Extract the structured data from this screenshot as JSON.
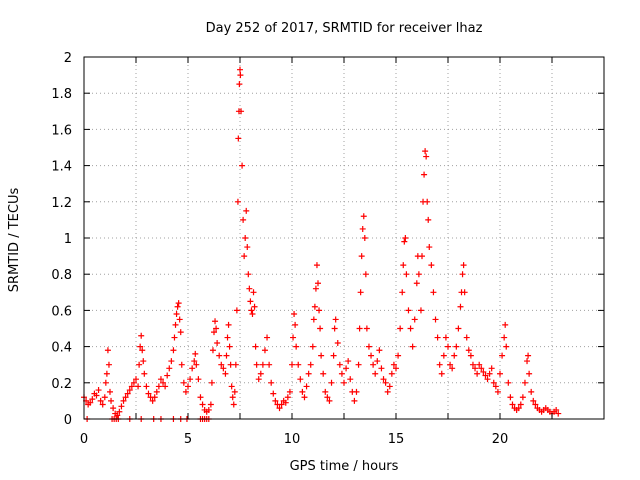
{
  "chart_data": {
    "type": "scatter",
    "title": "Day 252 of 2017, SRMTID for receiver lhaz",
    "xlabel": "GPS time / hours",
    "ylabel": "SRMTID / TECUs",
    "xlim": [
      0,
      25
    ],
    "ylim": [
      0,
      2
    ],
    "xticks": [
      0,
      5,
      10,
      15,
      20
    ],
    "yticks": [
      0,
      0.2,
      0.4,
      0.6,
      0.8,
      1,
      1.2,
      1.4,
      1.6,
      1.8,
      2
    ],
    "xtick_labels": [
      "0",
      "5",
      "10",
      "15",
      "20"
    ],
    "ytick_labels": [
      "0",
      "0.2",
      "0.4",
      "0.6",
      "0.8",
      "1",
      "1.2",
      "1.4",
      "1.6",
      "1.8",
      "2"
    ],
    "marker": "+",
    "color": "#ff0000",
    "grid": true,
    "series": [
      {
        "name": "SRMTID",
        "points": [
          [
            0.0,
            0.12
          ],
          [
            0.1,
            0.1
          ],
          [
            0.2,
            0.08
          ],
          [
            0.3,
            0.09
          ],
          [
            0.4,
            0.11
          ],
          [
            0.5,
            0.14
          ],
          [
            0.6,
            0.13
          ],
          [
            0.7,
            0.16
          ],
          [
            0.8,
            0.1
          ],
          [
            0.9,
            0.08
          ],
          [
            1.0,
            0.12
          ],
          [
            1.05,
            0.2
          ],
          [
            1.1,
            0.25
          ],
          [
            1.15,
            0.38
          ],
          [
            1.2,
            0.3
          ],
          [
            1.25,
            0.15
          ],
          [
            1.3,
            0.1
          ],
          [
            1.4,
            0.06
          ],
          [
            1.5,
            0.03
          ],
          [
            1.6,
            0.02
          ],
          [
            1.7,
            0.04
          ],
          [
            1.8,
            0.07
          ],
          [
            1.9,
            0.1
          ],
          [
            2.0,
            0.12
          ],
          [
            2.1,
            0.14
          ],
          [
            2.2,
            0.16
          ],
          [
            2.3,
            0.18
          ],
          [
            2.4,
            0.2
          ],
          [
            2.5,
            0.22
          ],
          [
            2.6,
            0.18
          ],
          [
            2.65,
            0.3
          ],
          [
            2.7,
            0.4
          ],
          [
            2.75,
            0.46
          ],
          [
            2.8,
            0.38
          ],
          [
            2.85,
            0.32
          ],
          [
            2.9,
            0.25
          ],
          [
            3.0,
            0.18
          ],
          [
            3.1,
            0.14
          ],
          [
            3.2,
            0.12
          ],
          [
            3.3,
            0.1
          ],
          [
            3.4,
            0.12
          ],
          [
            3.5,
            0.15
          ],
          [
            3.6,
            0.18
          ],
          [
            3.7,
            0.22
          ],
          [
            3.8,
            0.2
          ],
          [
            3.9,
            0.18
          ],
          [
            4.0,
            0.24
          ],
          [
            4.1,
            0.28
          ],
          [
            4.2,
            0.32
          ],
          [
            4.3,
            0.38
          ],
          [
            4.35,
            0.45
          ],
          [
            4.4,
            0.52
          ],
          [
            4.45,
            0.58
          ],
          [
            4.5,
            0.62
          ],
          [
            4.55,
            0.64
          ],
          [
            4.6,
            0.55
          ],
          [
            4.65,
            0.48
          ],
          [
            4.7,
            0.3
          ],
          [
            4.8,
            0.2
          ],
          [
            4.9,
            0.15
          ],
          [
            5.0,
            0.18
          ],
          [
            5.1,
            0.22
          ],
          [
            5.2,
            0.28
          ],
          [
            5.3,
            0.32
          ],
          [
            5.35,
            0.36
          ],
          [
            5.4,
            0.3
          ],
          [
            5.5,
            0.22
          ],
          [
            5.6,
            0.12
          ],
          [
            5.7,
            0.08
          ],
          [
            5.8,
            0.05
          ],
          [
            5.9,
            0.04
          ],
          [
            6.0,
            0.05
          ],
          [
            6.1,
            0.08
          ],
          [
            6.15,
            0.2
          ],
          [
            6.2,
            0.38
          ],
          [
            6.25,
            0.48
          ],
          [
            6.3,
            0.54
          ],
          [
            6.35,
            0.5
          ],
          [
            6.4,
            0.42
          ],
          [
            6.5,
            0.35
          ],
          [
            6.6,
            0.3
          ],
          [
            6.7,
            0.28
          ],
          [
            6.8,
            0.25
          ],
          [
            6.85,
            0.35
          ],
          [
            6.9,
            0.45
          ],
          [
            6.95,
            0.52
          ],
          [
            7.0,
            0.4
          ],
          [
            7.05,
            0.3
          ],
          [
            7.1,
            0.18
          ],
          [
            7.15,
            0.12
          ],
          [
            7.2,
            0.08
          ],
          [
            7.25,
            0.15
          ],
          [
            7.3,
            0.3
          ],
          [
            7.35,
            0.6
          ],
          [
            7.4,
            1.2
          ],
          [
            7.42,
            1.55
          ],
          [
            7.45,
            1.7
          ],
          [
            7.47,
            1.85
          ],
          [
            7.5,
            1.93
          ],
          [
            7.52,
            1.9
          ],
          [
            7.55,
            1.7
          ],
          [
            7.6,
            1.4
          ],
          [
            7.65,
            1.1
          ],
          [
            7.7,
            0.9
          ],
          [
            7.75,
            1.0
          ],
          [
            7.8,
            1.15
          ],
          [
            7.85,
            0.95
          ],
          [
            7.9,
            0.8
          ],
          [
            7.95,
            0.72
          ],
          [
            8.0,
            0.65
          ],
          [
            8.05,
            0.6
          ],
          [
            8.1,
            0.58
          ],
          [
            8.15,
            0.7
          ],
          [
            8.2,
            0.62
          ],
          [
            8.25,
            0.4
          ],
          [
            8.3,
            0.3
          ],
          [
            8.4,
            0.22
          ],
          [
            8.5,
            0.25
          ],
          [
            8.6,
            0.3
          ],
          [
            8.7,
            0.38
          ],
          [
            8.8,
            0.45
          ],
          [
            8.9,
            0.3
          ],
          [
            9.0,
            0.2
          ],
          [
            9.1,
            0.14
          ],
          [
            9.2,
            0.1
          ],
          [
            9.3,
            0.08
          ],
          [
            9.4,
            0.06
          ],
          [
            9.5,
            0.08
          ],
          [
            9.6,
            0.1
          ],
          [
            9.7,
            0.09
          ],
          [
            9.8,
            0.12
          ],
          [
            9.9,
            0.15
          ],
          [
            10.0,
            0.3
          ],
          [
            10.05,
            0.45
          ],
          [
            10.1,
            0.58
          ],
          [
            10.15,
            0.52
          ],
          [
            10.2,
            0.4
          ],
          [
            10.3,
            0.3
          ],
          [
            10.4,
            0.22
          ],
          [
            10.5,
            0.15
          ],
          [
            10.6,
            0.12
          ],
          [
            10.7,
            0.18
          ],
          [
            10.8,
            0.25
          ],
          [
            10.9,
            0.3
          ],
          [
            11.0,
            0.4
          ],
          [
            11.05,
            0.55
          ],
          [
            11.1,
            0.62
          ],
          [
            11.15,
            0.72
          ],
          [
            11.2,
            0.85
          ],
          [
            11.25,
            0.75
          ],
          [
            11.3,
            0.6
          ],
          [
            11.35,
            0.5
          ],
          [
            11.4,
            0.35
          ],
          [
            11.5,
            0.25
          ],
          [
            11.6,
            0.15
          ],
          [
            11.7,
            0.12
          ],
          [
            11.8,
            0.1
          ],
          [
            11.9,
            0.2
          ],
          [
            12.0,
            0.35
          ],
          [
            12.05,
            0.5
          ],
          [
            12.1,
            0.55
          ],
          [
            12.2,
            0.42
          ],
          [
            12.3,
            0.3
          ],
          [
            12.4,
            0.25
          ],
          [
            12.5,
            0.2
          ],
          [
            12.6,
            0.28
          ],
          [
            12.7,
            0.32
          ],
          [
            12.8,
            0.22
          ],
          [
            12.9,
            0.15
          ],
          [
            13.0,
            0.1
          ],
          [
            13.1,
            0.15
          ],
          [
            13.2,
            0.3
          ],
          [
            13.25,
            0.5
          ],
          [
            13.3,
            0.7
          ],
          [
            13.35,
            0.9
          ],
          [
            13.4,
            1.05
          ],
          [
            13.45,
            1.12
          ],
          [
            13.5,
            1.0
          ],
          [
            13.55,
            0.8
          ],
          [
            13.6,
            0.5
          ],
          [
            13.7,
            0.4
          ],
          [
            13.8,
            0.35
          ],
          [
            13.9,
            0.3
          ],
          [
            14.0,
            0.25
          ],
          [
            14.1,
            0.32
          ],
          [
            14.2,
            0.38
          ],
          [
            14.3,
            0.28
          ],
          [
            14.4,
            0.22
          ],
          [
            14.5,
            0.2
          ],
          [
            14.6,
            0.15
          ],
          [
            14.7,
            0.18
          ],
          [
            14.8,
            0.25
          ],
          [
            14.9,
            0.3
          ],
          [
            15.0,
            0.28
          ],
          [
            15.1,
            0.35
          ],
          [
            15.2,
            0.5
          ],
          [
            15.3,
            0.7
          ],
          [
            15.35,
            0.85
          ],
          [
            15.4,
            0.98
          ],
          [
            15.45,
            1.0
          ],
          [
            15.5,
            0.8
          ],
          [
            15.6,
            0.6
          ],
          [
            15.7,
            0.5
          ],
          [
            15.8,
            0.4
          ],
          [
            15.9,
            0.55
          ],
          [
            16.0,
            0.75
          ],
          [
            16.05,
            0.9
          ],
          [
            16.1,
            0.8
          ],
          [
            16.2,
            0.6
          ],
          [
            16.25,
            0.9
          ],
          [
            16.3,
            1.2
          ],
          [
            16.35,
            1.35
          ],
          [
            16.4,
            1.48
          ],
          [
            16.45,
            1.45
          ],
          [
            16.5,
            1.2
          ],
          [
            16.55,
            1.1
          ],
          [
            16.6,
            0.95
          ],
          [
            16.7,
            0.85
          ],
          [
            16.8,
            0.7
          ],
          [
            16.9,
            0.55
          ],
          [
            17.0,
            0.45
          ],
          [
            17.1,
            0.3
          ],
          [
            17.2,
            0.25
          ],
          [
            17.3,
            0.35
          ],
          [
            17.4,
            0.45
          ],
          [
            17.5,
            0.4
          ],
          [
            17.6,
            0.3
          ],
          [
            17.7,
            0.28
          ],
          [
            17.8,
            0.35
          ],
          [
            17.9,
            0.4
          ],
          [
            18.0,
            0.5
          ],
          [
            18.1,
            0.62
          ],
          [
            18.15,
            0.7
          ],
          [
            18.2,
            0.8
          ],
          [
            18.25,
            0.85
          ],
          [
            18.3,
            0.7
          ],
          [
            18.4,
            0.45
          ],
          [
            18.5,
            0.38
          ],
          [
            18.6,
            0.35
          ],
          [
            18.7,
            0.3
          ],
          [
            18.8,
            0.28
          ],
          [
            18.9,
            0.25
          ],
          [
            19.0,
            0.3
          ],
          [
            19.1,
            0.28
          ],
          [
            19.2,
            0.26
          ],
          [
            19.3,
            0.24
          ],
          [
            19.4,
            0.22
          ],
          [
            19.5,
            0.25
          ],
          [
            19.6,
            0.28
          ],
          [
            19.7,
            0.2
          ],
          [
            19.8,
            0.18
          ],
          [
            19.9,
            0.15
          ],
          [
            20.0,
            0.25
          ],
          [
            20.1,
            0.35
          ],
          [
            20.2,
            0.45
          ],
          [
            20.25,
            0.52
          ],
          [
            20.3,
            0.4
          ],
          [
            20.4,
            0.2
          ],
          [
            20.5,
            0.12
          ],
          [
            20.6,
            0.08
          ],
          [
            20.7,
            0.06
          ],
          [
            20.8,
            0.05
          ],
          [
            20.9,
            0.06
          ],
          [
            21.0,
            0.08
          ],
          [
            21.1,
            0.12
          ],
          [
            21.2,
            0.2
          ],
          [
            21.3,
            0.32
          ],
          [
            21.35,
            0.35
          ],
          [
            21.4,
            0.25
          ],
          [
            21.5,
            0.15
          ],
          [
            21.6,
            0.1
          ],
          [
            21.7,
            0.08
          ],
          [
            21.8,
            0.06
          ],
          [
            21.9,
            0.05
          ],
          [
            22.0,
            0.04
          ],
          [
            22.1,
            0.05
          ],
          [
            22.2,
            0.06
          ],
          [
            22.3,
            0.05
          ],
          [
            22.4,
            0.04
          ],
          [
            22.5,
            0.03
          ],
          [
            22.6,
            0.04
          ],
          [
            22.7,
            0.05
          ],
          [
            22.8,
            0.03
          ],
          [
            0.15,
            0.0
          ],
          [
            1.35,
            0.0
          ],
          [
            1.45,
            0.0
          ],
          [
            1.55,
            0.0
          ],
          [
            1.65,
            0.0
          ],
          [
            2.2,
            0.0
          ],
          [
            2.75,
            0.0
          ],
          [
            3.35,
            0.0
          ],
          [
            3.7,
            0.0
          ],
          [
            4.3,
            0.0
          ],
          [
            4.65,
            0.0
          ],
          [
            4.95,
            0.0
          ],
          [
            5.6,
            0.0
          ],
          [
            5.7,
            0.0
          ],
          [
            5.8,
            0.0
          ],
          [
            5.9,
            0.0
          ],
          [
            6.0,
            0.0
          ]
        ]
      }
    ]
  }
}
